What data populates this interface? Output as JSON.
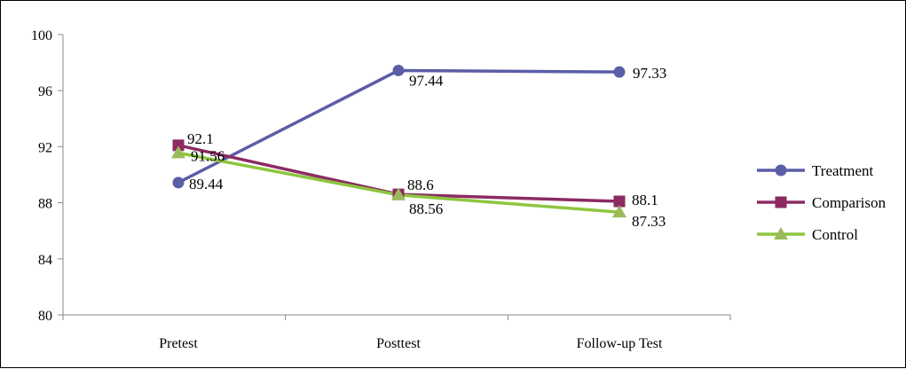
{
  "chart_data": {
    "type": "line",
    "categories": [
      "Pretest",
      "Posttest",
      "Follow-up Test"
    ],
    "ylim": [
      80,
      100
    ],
    "yticks": [
      80,
      84,
      88,
      92,
      96,
      100
    ],
    "grid": false,
    "legend_position": "right",
    "series": [
      {
        "name": "Treatment",
        "values": [
          89.44,
          97.44,
          97.33
        ],
        "labels": [
          "89.44",
          "97.44",
          "97.33"
        ],
        "color": "#5b5ea6",
        "marker": "circle"
      },
      {
        "name": "Comparison",
        "values": [
          92.1,
          88.6,
          88.1
        ],
        "labels": [
          "92.1",
          "88.6",
          "88.1"
        ],
        "color": "#8b2b62",
        "marker": "square"
      },
      {
        "name": "Control",
        "values": [
          91.56,
          88.56,
          87.33
        ],
        "labels": [
          "91.56",
          "88.56",
          "87.33"
        ],
        "color": "#8cc63f",
        "marker": "triangle",
        "marker_color": "#9bbb59"
      }
    ]
  }
}
